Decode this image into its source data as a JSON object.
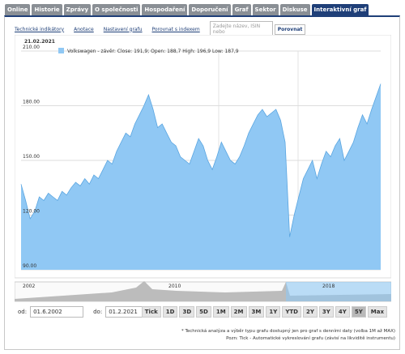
{
  "tabs": [
    "Online",
    "Historie",
    "Zprávy",
    "O společnosti",
    "Hospodaření",
    "Doporučení",
    "Graf",
    "Sektor",
    "Diskuse",
    "Interaktivní graf"
  ],
  "active_tab": 9,
  "toolbar": {
    "links": [
      "Technické indikátory",
      "Anotace",
      "Nastavení grafu",
      "Porovnat s indexem"
    ],
    "search_placeholder": "Zadejte název, ISIN nebo",
    "button": "Porovnat"
  },
  "chart_data": {
    "type": "area",
    "date": "21.02.2021",
    "series": [
      {
        "name": "Volkswagen - závěr: Close: 191,9; Open: 188,7 High: 196,9 Low: 187,9",
        "color": "#90c8f4",
        "values": [
          137,
          128,
          118,
          122,
          130,
          128,
          132,
          130,
          128,
          133,
          131,
          135,
          138,
          136,
          140,
          137,
          142,
          140,
          145,
          150,
          148,
          155,
          160,
          165,
          163,
          170,
          175,
          180,
          186,
          178,
          168,
          170,
          165,
          160,
          158,
          152,
          150,
          148,
          155,
          162,
          158,
          150,
          145,
          152,
          160,
          155,
          150,
          148,
          152,
          158,
          165,
          170,
          175,
          178,
          174,
          176,
          178,
          172,
          160,
          108,
          120,
          130,
          140,
          145,
          150,
          140,
          148,
          155,
          152,
          158,
          162,
          150,
          155,
          160,
          168,
          175,
          170,
          178,
          185,
          192
        ]
      }
    ],
    "ylim": [
      90,
      210
    ],
    "yticks": [
      {
        "value": 90,
        "label": "90.00"
      },
      {
        "value": 120,
        "label": "120.00"
      },
      {
        "value": 150,
        "label": "150.00"
      },
      {
        "value": 180,
        "label": "180.00"
      },
      {
        "value": 210,
        "label": "210.00"
      }
    ],
    "grid": true
  },
  "navigator": {
    "labels": [
      "2002",
      "2010",
      "2018"
    ]
  },
  "range": {
    "from_label": "od:",
    "from": "01.6.2002",
    "to_label": "do:",
    "to": "01.2.2021"
  },
  "buttons": [
    "Tick",
    "1D",
    "3D",
    "5D",
    "1M",
    "2M",
    "3M",
    "1Y",
    "YTD",
    "2Y",
    "3Y",
    "4Y",
    "5Y",
    "Max"
  ],
  "active_button": 12,
  "notes": [
    "* Technická analýza a výběr typu grafu dostupný jen pro graf s denními daty (volba 1M až MAX)",
    "Pozn: Tick - Automatické vykreslování grafu (závisí na likviditě instrumentu)"
  ]
}
